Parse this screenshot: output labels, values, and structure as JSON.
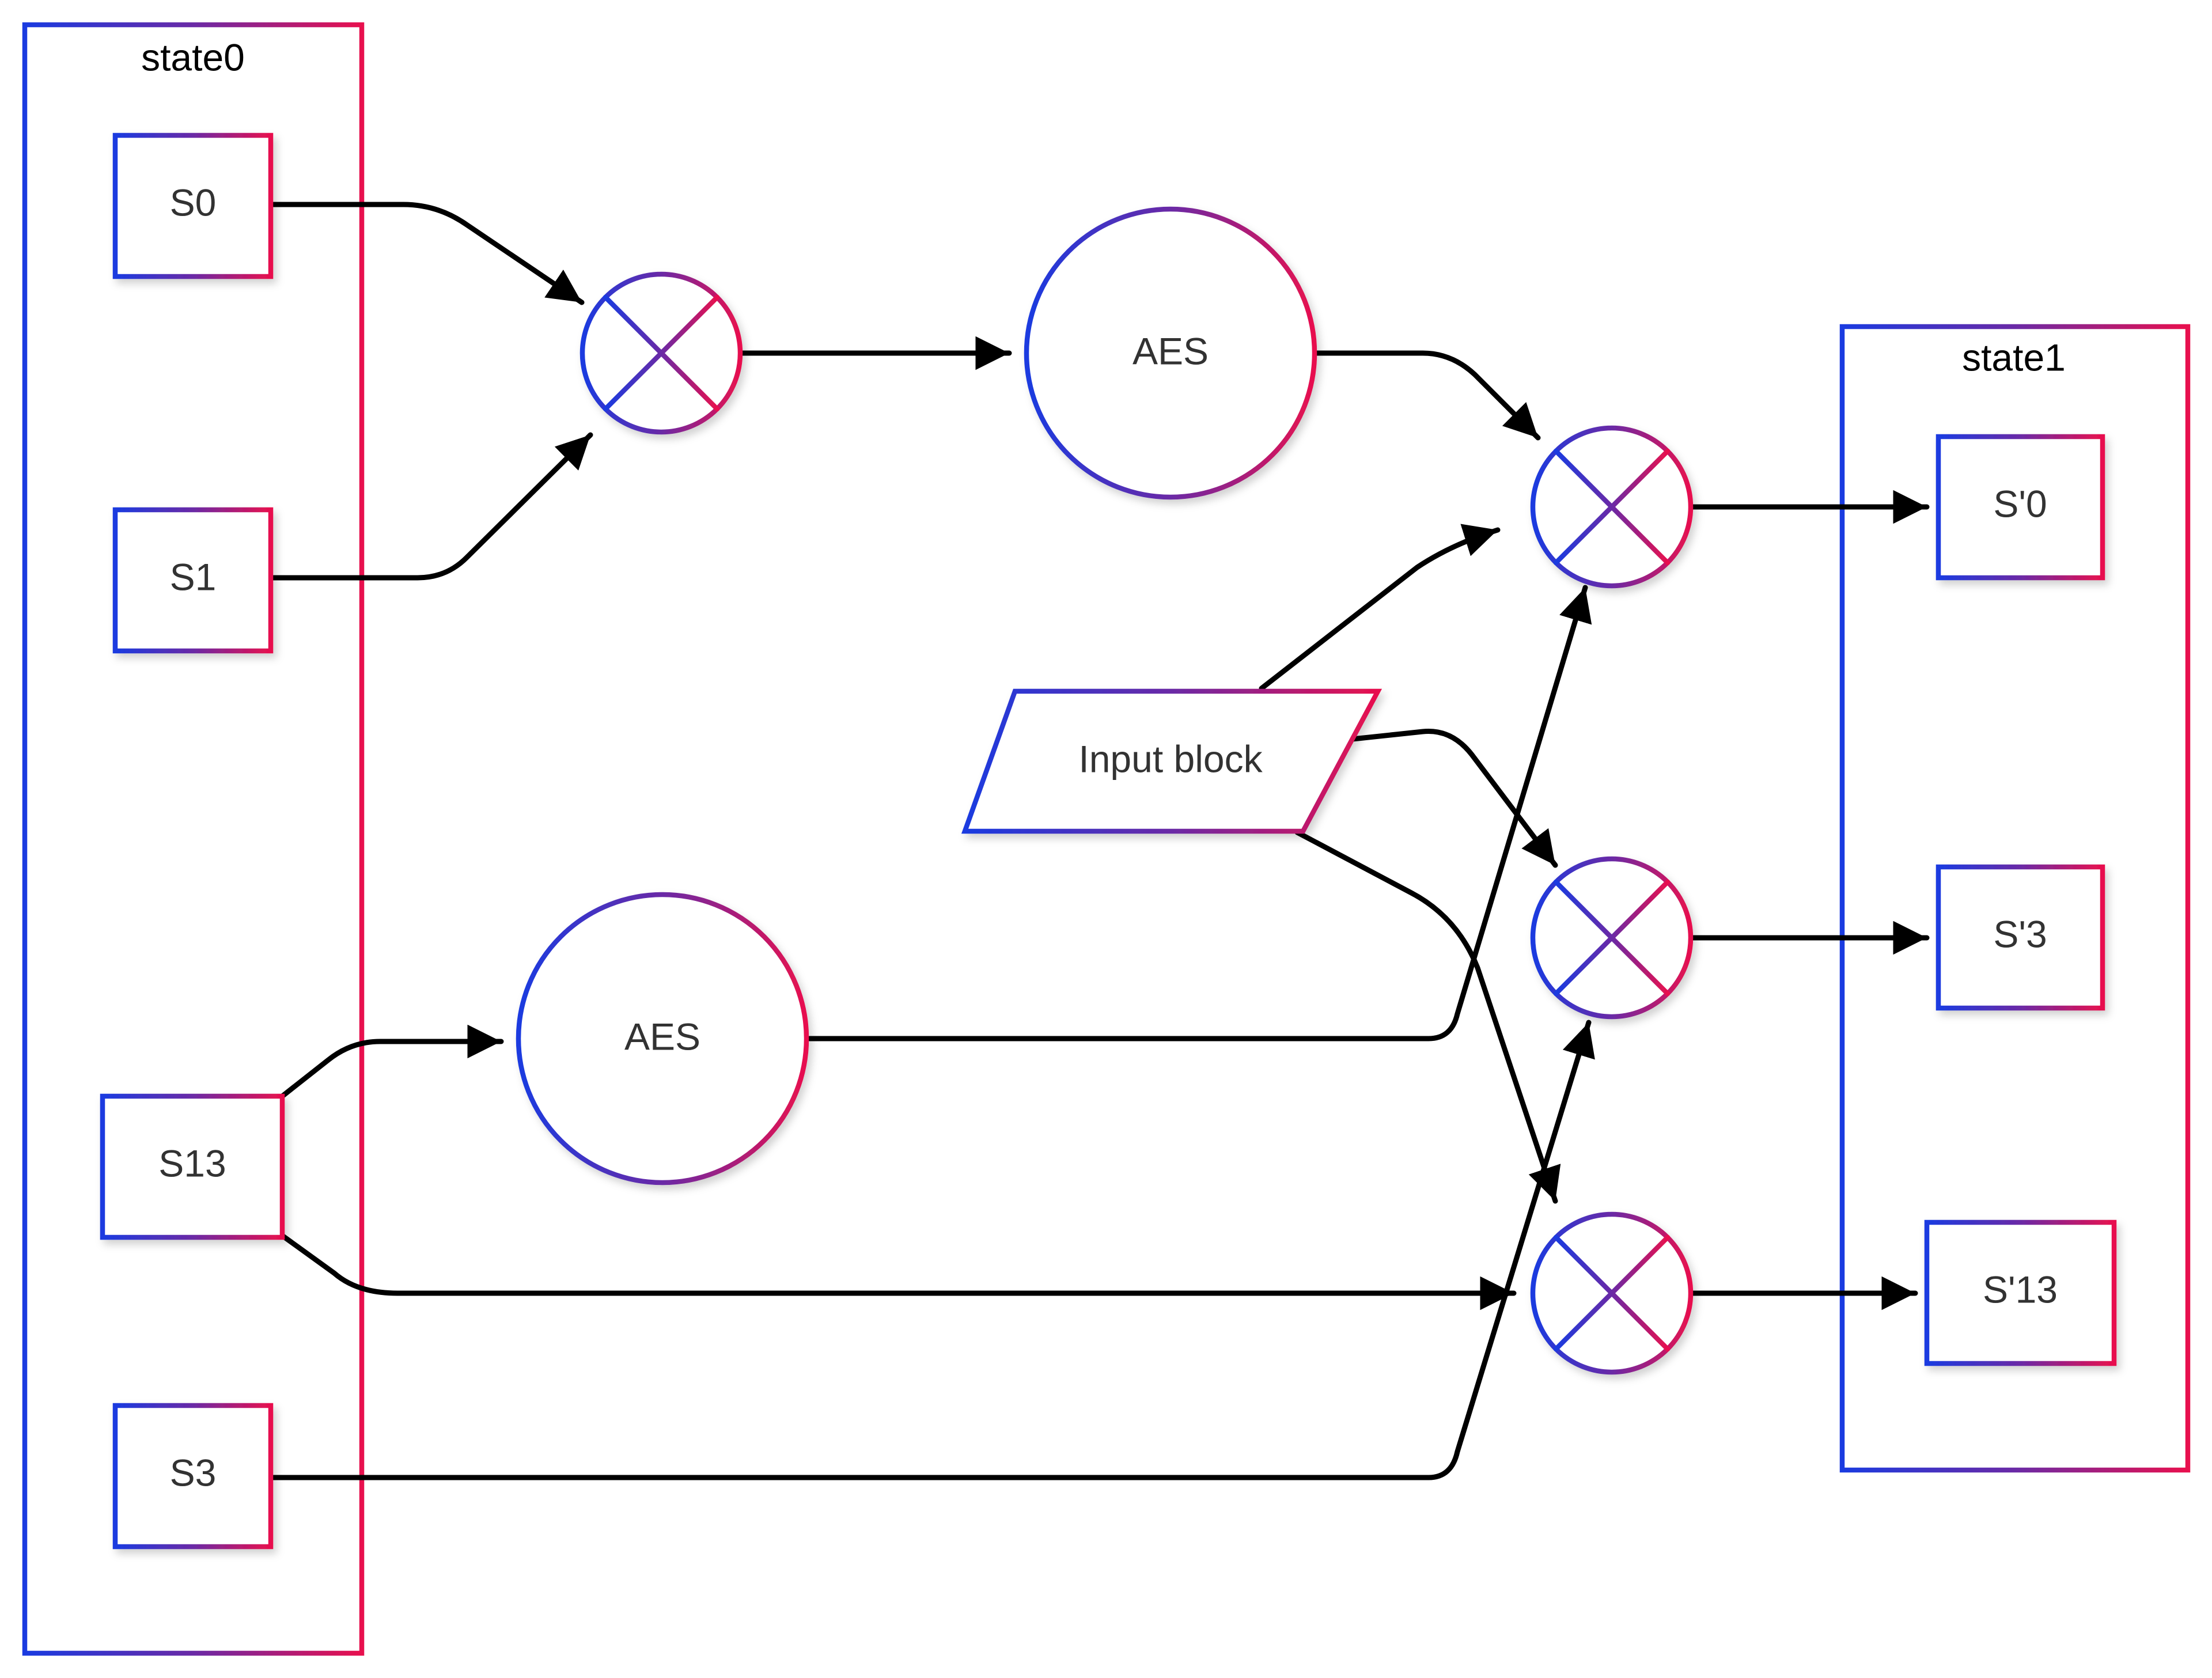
{
  "containers": {
    "state0": {
      "title": "state0"
    },
    "state1": {
      "title": "state1"
    }
  },
  "inputs": {
    "s0": "S0",
    "s1": "S1",
    "s13": "S13",
    "s3": "S3"
  },
  "outputs": {
    "s0p": "S'0",
    "s3p": "S'3",
    "s13p": "S'13"
  },
  "aes": {
    "top": "AES",
    "bottom": "AES"
  },
  "input_block": "Input block",
  "colors": {
    "gradient_start": "#1a3be0",
    "gradient_mid": "#6a2aa6",
    "gradient_end": "#e8104e",
    "edge": "#000000",
    "text": "#333333"
  }
}
